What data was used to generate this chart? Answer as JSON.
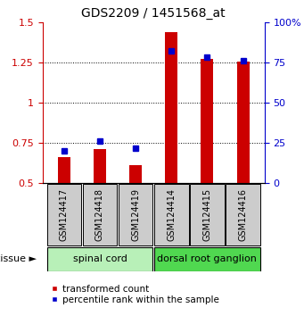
{
  "title": "GDS2209 / 1451568_at",
  "samples": [
    "GSM124417",
    "GSM124418",
    "GSM124419",
    "GSM124414",
    "GSM124415",
    "GSM124416"
  ],
  "red_values": [
    0.665,
    0.715,
    0.615,
    1.44,
    1.27,
    1.255
  ],
  "blue_values_pct": [
    20,
    26,
    22,
    82,
    78,
    76
  ],
  "ylim_left": [
    0.5,
    1.5
  ],
  "ylim_right": [
    0,
    100
  ],
  "yticks_left": [
    0.5,
    0.75,
    1.0,
    1.25,
    1.5
  ],
  "yticks_right": [
    0,
    25,
    50,
    75,
    100
  ],
  "ytick_labels_left": [
    "0.5",
    "0.75",
    "1",
    "1.25",
    "1.5"
  ],
  "ytick_labels_right": [
    "0",
    "25",
    "50",
    "75",
    "100%"
  ],
  "tissue_groups": [
    {
      "label": "spinal cord",
      "start": 0,
      "end": 3,
      "color": "#b8f0b8"
    },
    {
      "label": "dorsal root ganglion",
      "start": 3,
      "end": 6,
      "color": "#50d850"
    }
  ],
  "red_color": "#cc0000",
  "blue_color": "#0000cc",
  "bar_width": 0.35,
  "blue_marker_size": 5,
  "legend_items": [
    "transformed count",
    "percentile rank within the sample"
  ],
  "bg_plot": "#ffffff",
  "bg_sample_box": "#cccccc",
  "title_fontsize": 10,
  "tick_fontsize": 8,
  "sample_fontsize": 7,
  "tissue_fontsize": 8,
  "legend_fontsize": 7.5
}
